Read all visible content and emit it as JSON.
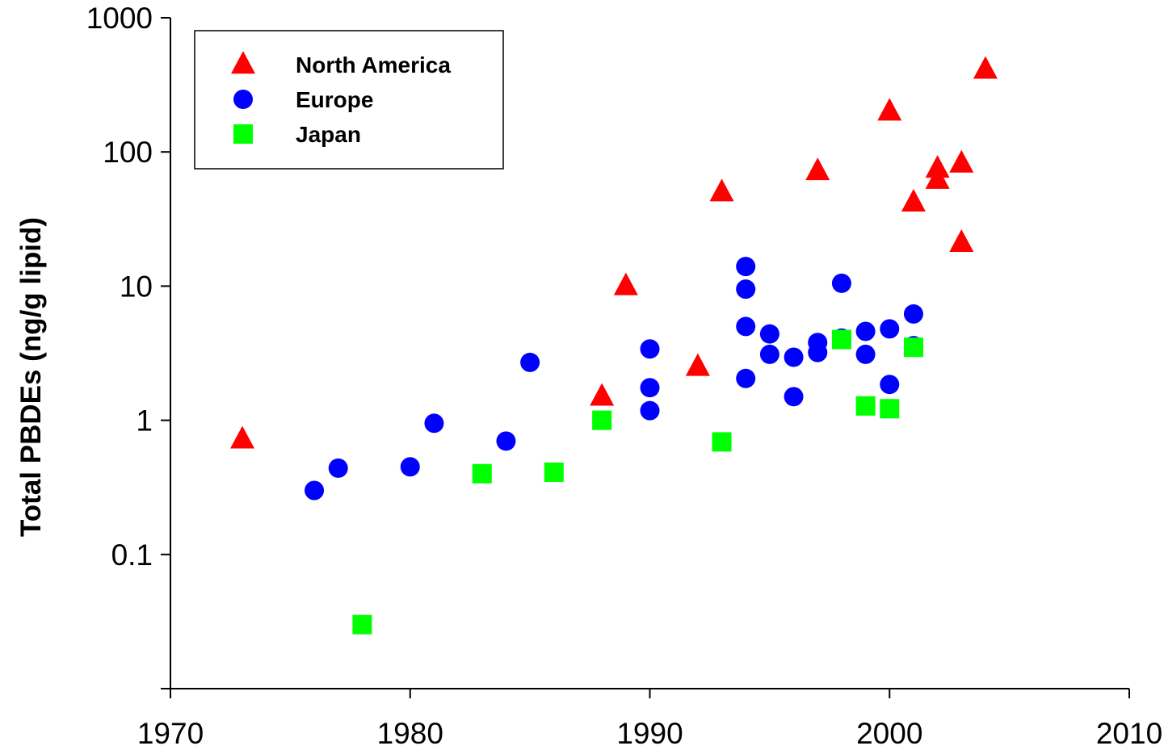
{
  "chart_data": {
    "type": "scatter",
    "title": "",
    "xlabel": "",
    "ylabel": "Total PBDEs (ng/g lipid)",
    "xlim": [
      1970,
      2010
    ],
    "ylim": [
      0.01,
      1000
    ],
    "y_scale": "log",
    "grid": false,
    "legend_position": "top-left",
    "x_ticks": [
      "1970",
      "1980",
      "1990",
      "2000",
      "2010"
    ],
    "y_ticks": [
      "0.1",
      "1",
      "10",
      "100",
      "1000"
    ],
    "series": [
      {
        "name": "North America",
        "marker": "triangle",
        "color": "#ff0000",
        "x": [
          1973,
          1988,
          1989,
          1992,
          1993,
          1997,
          2000,
          2001,
          2002,
          2002,
          2003,
          2003,
          2004
        ],
        "y": [
          0.72,
          1.5,
          10,
          2.5,
          50,
          72,
          200,
          42,
          75,
          62,
          82,
          21,
          410
        ]
      },
      {
        "name": "Europe",
        "marker": "circle",
        "color": "#0000ff",
        "x": [
          1976,
          1977,
          1980,
          1981,
          1984,
          1985,
          1990,
          1990,
          1990,
          1994,
          1994,
          1994,
          1994,
          1995,
          1995,
          1996,
          1996,
          1997,
          1997,
          1998,
          1998,
          1999,
          1999,
          2000,
          2000,
          2001,
          2001
        ],
        "y": [
          0.3,
          0.44,
          0.45,
          0.95,
          0.7,
          2.7,
          3.4,
          1.75,
          1.18,
          14,
          9.5,
          5,
          2.05,
          4.4,
          3.1,
          2.95,
          1.5,
          3.8,
          3.2,
          10.5,
          4.1,
          4.6,
          3.1,
          4.8,
          1.85,
          6.2,
          3.6
        ]
      },
      {
        "name": "Japan",
        "marker": "square",
        "color": "#00ff00",
        "x": [
          1978,
          1983,
          1986,
          1988,
          1993,
          1998,
          1999,
          2000,
          2001
        ],
        "y": [
          0.03,
          0.4,
          0.41,
          1.0,
          0.69,
          4.0,
          1.28,
          1.22,
          3.5
        ]
      }
    ]
  }
}
